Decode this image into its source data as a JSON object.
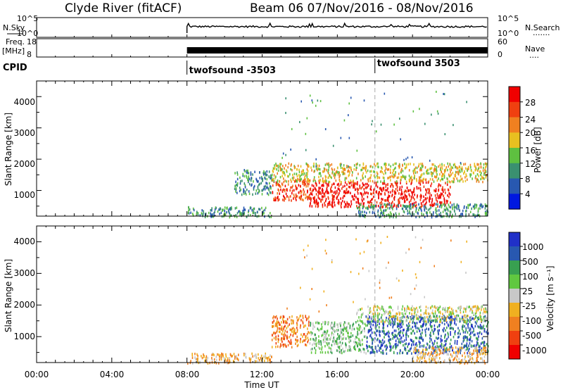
{
  "header": {
    "left_title": "Clyde River (fitACF)",
    "right_title": "Beam 06  07/Nov/2016 - 08/Nov/2016"
  },
  "top_panel": {
    "left_label": "N.Sky",
    "left_ticks": [
      "10^5",
      "10^0"
    ],
    "right_label": "N.Search",
    "right_ticks": [
      "10^5",
      "10^0"
    ],
    "right_dots": "......."
  },
  "freq_panel": {
    "left_label_line1": "Freq.",
    "left_label_line2": "[MHz]",
    "left_ticks": [
      "18",
      "8"
    ],
    "right_label": "Nave",
    "right_ticks": [
      "60",
      "0"
    ],
    "right_dots": "...."
  },
  "cpid": {
    "label": "CPID",
    "entries": [
      {
        "text": "twofsound -3503",
        "hour": 8.0
      },
      {
        "text": "twofsound 3503",
        "hour": 18.0
      }
    ]
  },
  "x_axis": {
    "label": "Time UT",
    "ticks": [
      "00:00",
      "04:00",
      "08:00",
      "12:00",
      "16:00",
      "20:00",
      "00:00"
    ],
    "range_hours": [
      0,
      24
    ],
    "data_start_hour": 8.0,
    "dashed_marker_hour": 18.0
  },
  "power_panel": {
    "ylabel": "Slant Range [km]",
    "yticks": [
      "1000",
      "2000",
      "3000",
      "4000"
    ],
    "ylim": [
      180,
      4500
    ],
    "colorbar": {
      "title": "Power [dB]",
      "labels": [
        "4",
        "8",
        "12",
        "16",
        "20",
        "24",
        "28"
      ],
      "colors": [
        "#0018e0",
        "#2858b0",
        "#3a9070",
        "#5ec040",
        "#e8c020",
        "#f08020",
        "#f04010",
        "#f00000"
      ]
    }
  },
  "velocity_panel": {
    "ylabel": "Slant Range [km]",
    "yticks": [
      "1000",
      "2000",
      "3000",
      "4000"
    ],
    "ylim": [
      180,
      4500
    ],
    "colorbar": {
      "title": "Velocity [m s⁻¹]",
      "labels": [
        "1000",
        "500",
        "100",
        "25",
        "-25",
        "-100",
        "-500",
        "-1000"
      ],
      "colors": [
        "#2030c8",
        "#2858b0",
        "#38a050",
        "#60c840",
        "#c8c8c8",
        "#f0b020",
        "#f08020",
        "#f04010",
        "#f00000"
      ]
    }
  },
  "chart_data": [
    {
      "type": "heatmap",
      "name": "power",
      "x_range_hours": [
        0,
        24
      ],
      "y_range_km": [
        180,
        4500
      ],
      "value_unit": "dB",
      "regions": [
        {
          "x": [
            8.0,
            12.5
          ],
          "y": [
            180,
            500
          ],
          "value": 12
        },
        {
          "x": [
            10.5,
            12.5
          ],
          "y": [
            900,
            1700
          ],
          "value": 12
        },
        {
          "x": [
            12.5,
            14.5
          ],
          "y": [
            700,
            1400
          ],
          "value": 26
        },
        {
          "x": [
            14.5,
            22.0
          ],
          "y": [
            500,
            1300
          ],
          "value": 30
        },
        {
          "x": [
            12.5,
            24.0
          ],
          "y": [
            1300,
            1900
          ],
          "value": 18
        },
        {
          "x": [
            17.0,
            24.0
          ],
          "y": [
            180,
            600
          ],
          "value": 10
        }
      ]
    },
    {
      "type": "heatmap",
      "name": "velocity",
      "x_range_hours": [
        0,
        24
      ],
      "y_range_km": [
        180,
        4500
      ],
      "value_unit": "m s-1",
      "regions": [
        {
          "x": [
            8.0,
            12.5
          ],
          "y": [
            180,
            500
          ],
          "value": -100
        },
        {
          "x": [
            12.5,
            14.5
          ],
          "y": [
            700,
            1700
          ],
          "value": -500
        },
        {
          "x": [
            14.5,
            17.5
          ],
          "y": [
            500,
            1500
          ],
          "value": 100
        },
        {
          "x": [
            17.5,
            24.0
          ],
          "y": [
            500,
            1700
          ],
          "value": 500
        },
        {
          "x": [
            17.0,
            24.0
          ],
          "y": [
            1500,
            2000
          ],
          "value": 25
        },
        {
          "x": [
            20.0,
            24.0
          ],
          "y": [
            180,
            700
          ],
          "value": -100
        }
      ]
    }
  ]
}
